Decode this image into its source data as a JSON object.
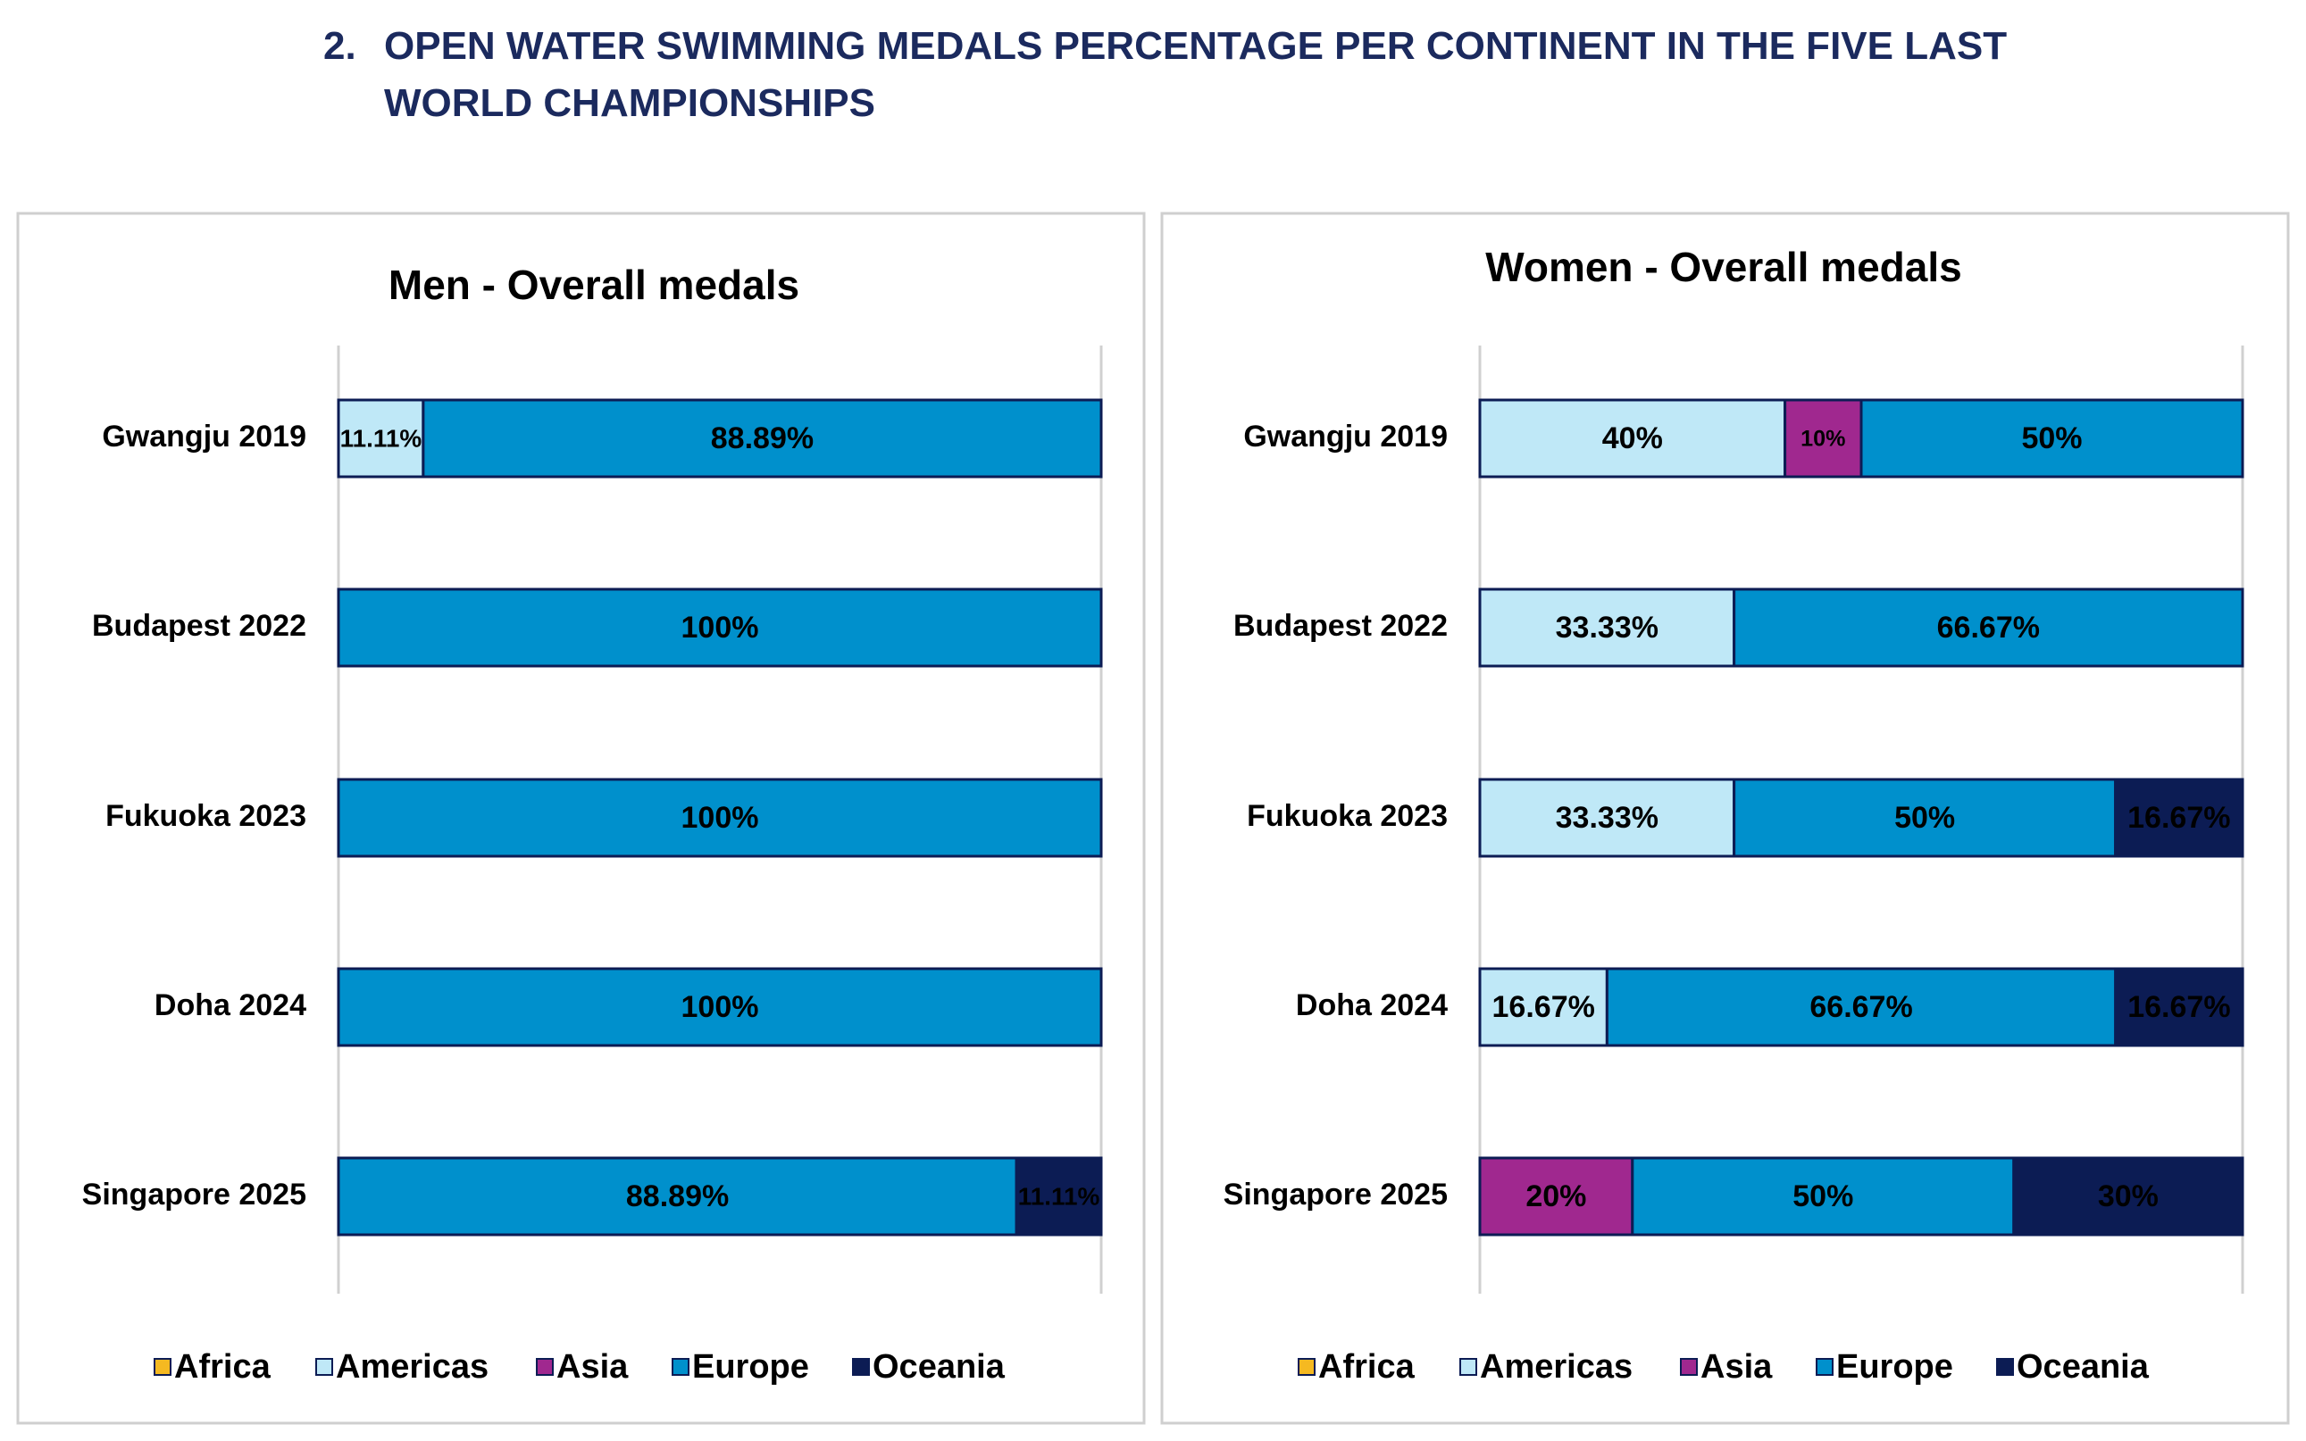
{
  "title_number": "2.",
  "title": "OPEN WATER SWIMMING MEDALS PERCENTAGE PER CONTINENT IN THE FIVE LAST WORLD CHAMPIONSHIPS",
  "chart_data": [
    {
      "type": "stacked-bar-horizontal",
      "title": "Men - Overall medals",
      "categories": [
        "Gwangju 2019",
        "Budapest 2022",
        "Fukuoka 2023",
        "Doha 2024",
        "Singapore 2025"
      ],
      "xlim": [
        0,
        100
      ],
      "series": [
        {
          "name": "Africa",
          "color": "#f5b921",
          "values": [
            0,
            0,
            0,
            0,
            0
          ],
          "value_labels": [
            null,
            null,
            null,
            null,
            null
          ]
        },
        {
          "name": "Americas",
          "color": "#bfe8f7",
          "values": [
            11.11,
            0,
            0,
            0,
            0
          ],
          "value_labels": [
            "11.11%",
            null,
            null,
            null,
            null
          ]
        },
        {
          "name": "Asia",
          "color": "#a0288f",
          "values": [
            0,
            0,
            0,
            0,
            0
          ],
          "value_labels": [
            null,
            null,
            null,
            null,
            null
          ]
        },
        {
          "name": "Europe",
          "color": "#0090cc",
          "values": [
            88.89,
            100,
            100,
            100,
            88.89
          ],
          "value_labels": [
            "88.89%",
            "100%",
            "100%",
            "100%",
            "88.89%"
          ]
        },
        {
          "name": "Oceania",
          "color": "#0c1c54",
          "values": [
            0,
            0,
            0,
            0,
            11.11
          ],
          "value_labels": [
            null,
            null,
            null,
            null,
            "11.11%"
          ]
        }
      ]
    },
    {
      "type": "stacked-bar-horizontal",
      "title": "Women - Overall medals",
      "categories": [
        "Gwangju 2019",
        "Budapest 2022",
        "Fukuoka 2023",
        "Doha 2024",
        "Singapore 2025"
      ],
      "xlim": [
        0,
        100
      ],
      "series": [
        {
          "name": "Africa",
          "color": "#f5b921",
          "values": [
            0,
            0,
            0,
            0,
            0
          ],
          "value_labels": [
            null,
            null,
            null,
            null,
            null
          ]
        },
        {
          "name": "Americas",
          "color": "#bfe8f7",
          "values": [
            40,
            33.33,
            33.33,
            16.67,
            0
          ],
          "value_labels": [
            "40%",
            "33.33%",
            "33.33%",
            "16.67%",
            null
          ]
        },
        {
          "name": "Asia",
          "color": "#a0288f",
          "values": [
            10,
            0,
            0,
            0,
            20
          ],
          "value_labels": [
            "10%",
            null,
            null,
            null,
            "20%"
          ]
        },
        {
          "name": "Europe",
          "color": "#0090cc",
          "values": [
            50,
            66.67,
            50,
            66.67,
            50
          ],
          "value_labels": [
            "50%",
            "66.67%",
            "50%",
            "66.67%",
            "50%"
          ]
        },
        {
          "name": "Oceania",
          "color": "#0c1c54",
          "values": [
            0,
            0,
            16.67,
            16.67,
            30
          ],
          "value_labels": [
            null,
            null,
            "16.67%",
            "16.67%",
            "30%"
          ]
        }
      ]
    }
  ]
}
